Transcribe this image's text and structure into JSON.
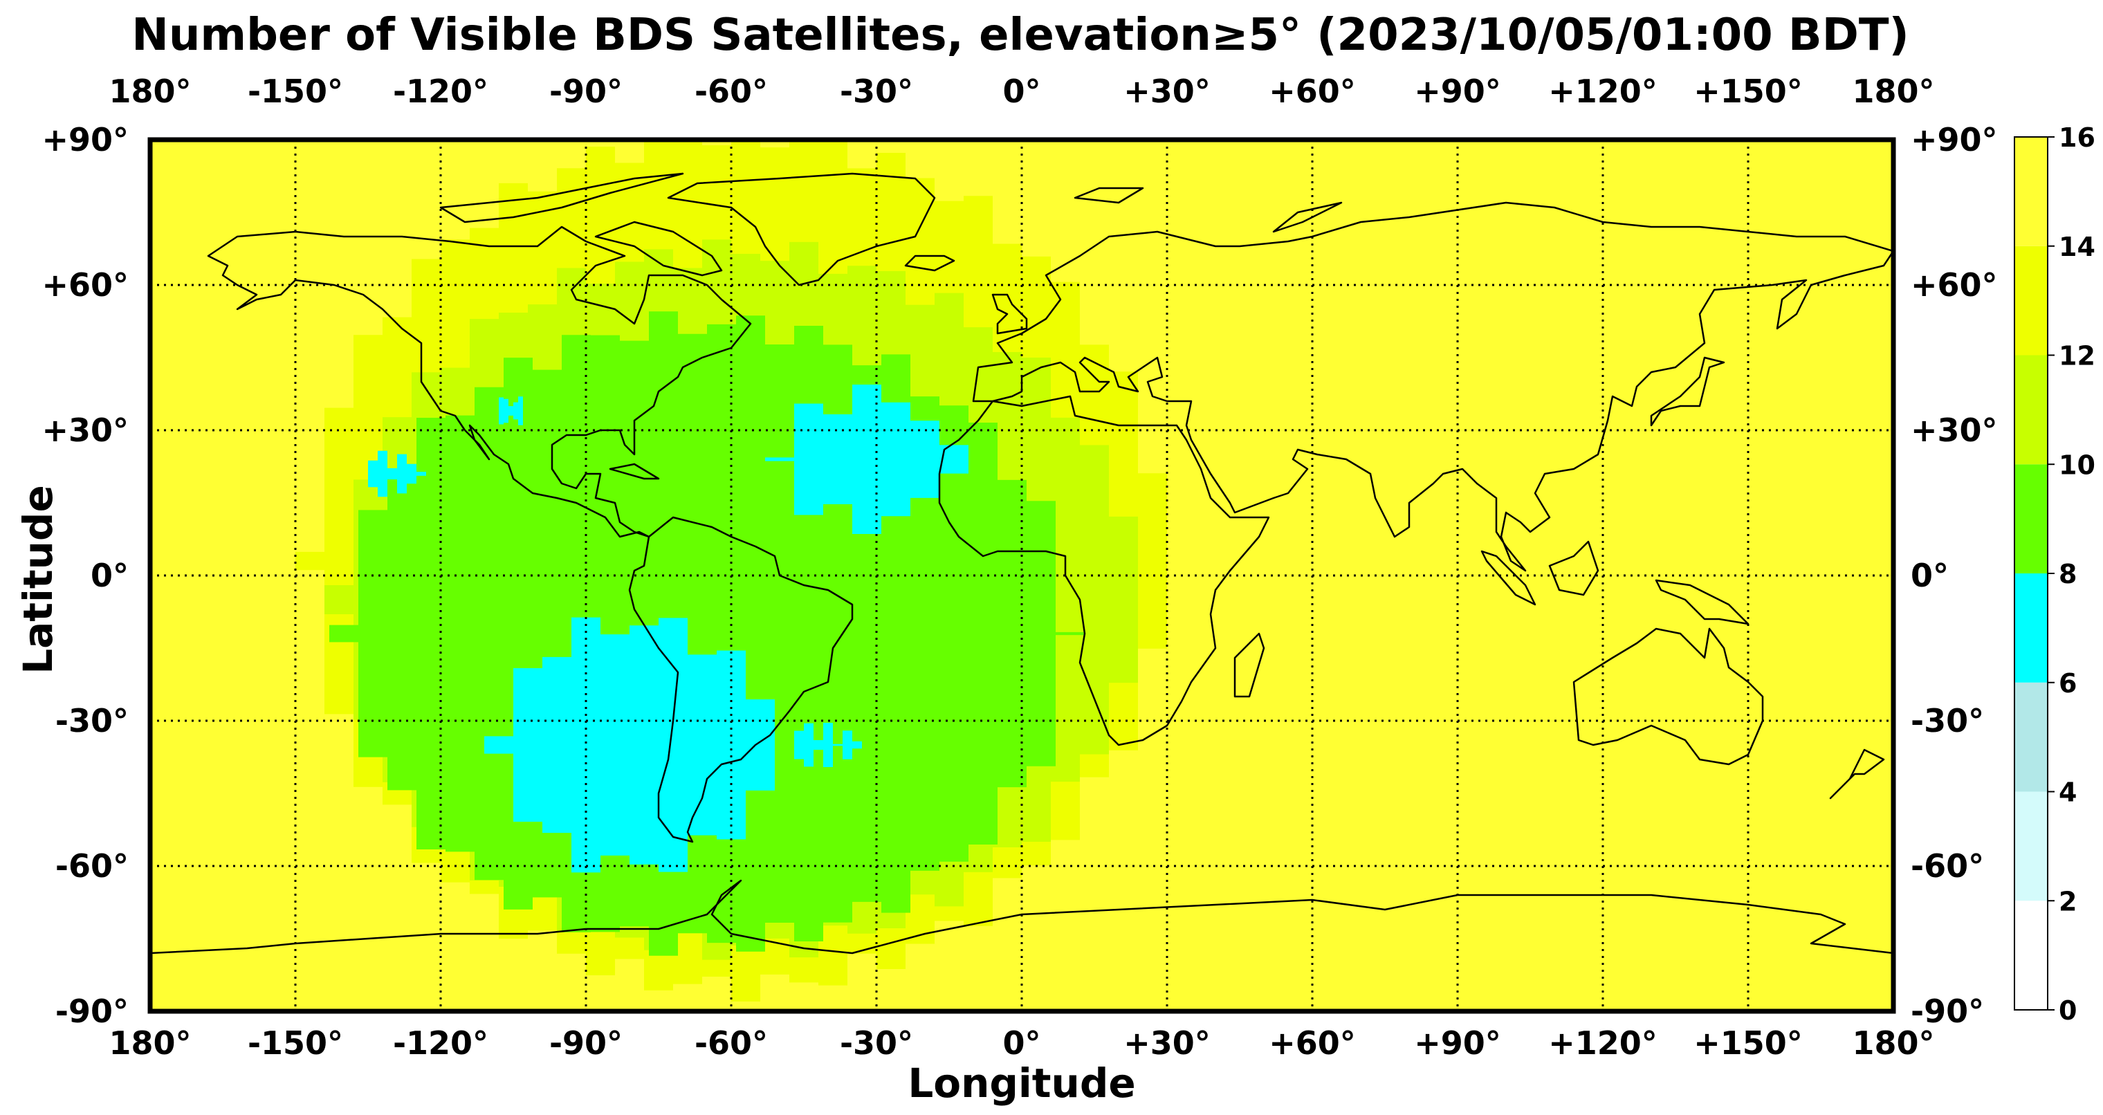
{
  "title": "Number of Visible BDS Satellites, elevation≥5° (2023/10/05/01:00 BDT)",
  "chart_data": {
    "type": "heatmap",
    "title": "Number of Visible BDS Satellites, elevation≥5° (2023/10/05/01:00 BDT)",
    "xlabel": "Longitude",
    "ylabel": "Latitude",
    "xlim": [
      -180,
      180
    ],
    "ylim": [
      -90,
      90
    ],
    "grid": true,
    "x_ticks": [
      -180,
      -150,
      -120,
      -90,
      -60,
      -30,
      0,
      30,
      60,
      90,
      120,
      150,
      180
    ],
    "x_tick_labels": [
      "180°",
      "-150°",
      "-120°",
      "-90°",
      "-60°",
      "-30°",
      "0°",
      "+30°",
      "+60°",
      "+90°",
      "+120°",
      "+150°",
      "180°"
    ],
    "y_ticks": [
      90,
      60,
      30,
      0,
      -30,
      -60,
      -90
    ],
    "y_tick_labels": [
      "+90°",
      "+60°",
      "+30°",
      "0°",
      "-30°",
      "-60°",
      "-90°"
    ],
    "colorbar": {
      "ticks": [
        0,
        2,
        4,
        6,
        8,
        10,
        12,
        14,
        16
      ],
      "tick_labels": [
        "0",
        "2",
        "4",
        "6",
        "8",
        "10",
        "12",
        "14",
        "16"
      ],
      "bins": [
        {
          "range": [
            0,
            2
          ],
          "color": "#ffffff"
        },
        {
          "range": [
            2,
            4
          ],
          "color": "#d4fbfb"
        },
        {
          "range": [
            4,
            6
          ],
          "color": "#b2e8e8"
        },
        {
          "range": [
            6,
            8
          ],
          "color": "#00ffff"
        },
        {
          "range": [
            8,
            10
          ],
          "color": "#66ff00"
        },
        {
          "range": [
            10,
            12
          ],
          "color": "#c8ff00"
        },
        {
          "range": [
            12,
            14
          ],
          "color": "#eeff00"
        },
        {
          "range": [
            14,
            16
          ],
          "color": "#ffff33"
        }
      ]
    },
    "regions": [
      {
        "value_range": [
          14,
          16
        ],
        "description_area": "background"
      },
      {
        "value_range": [
          12,
          14
        ],
        "lon": [
          -145,
          20
        ],
        "lat": [
          -88,
          90
        ]
      },
      {
        "value_range": [
          10,
          12
        ],
        "lon": [
          -152,
          28
        ],
        "lat": [
          -82,
          68
        ]
      },
      {
        "value_range": [
          8,
          10
        ],
        "lon": [
          -140,
          5
        ],
        "lat": [
          -78,
          52
        ]
      },
      {
        "value_range": [
          6,
          8
        ],
        "lon": [
          -115,
          -55
        ],
        "lat": [
          -62,
          -10
        ]
      },
      {
        "value_range": [
          6,
          8
        ],
        "lon": [
          -55,
          -15
        ],
        "lat": [
          10,
          40
        ]
      },
      {
        "value_range": [
          6,
          8
        ],
        "lon": [
          -135,
          -125
        ],
        "lat": [
          18,
          25
        ]
      },
      {
        "value_range": [
          6,
          8
        ],
        "lon": [
          -108,
          -104
        ],
        "lat": [
          32,
          36
        ]
      },
      {
        "value_range": [
          6,
          8
        ],
        "lon": [
          -47,
          -35
        ],
        "lat": [
          -37,
          -33
        ]
      }
    ]
  }
}
